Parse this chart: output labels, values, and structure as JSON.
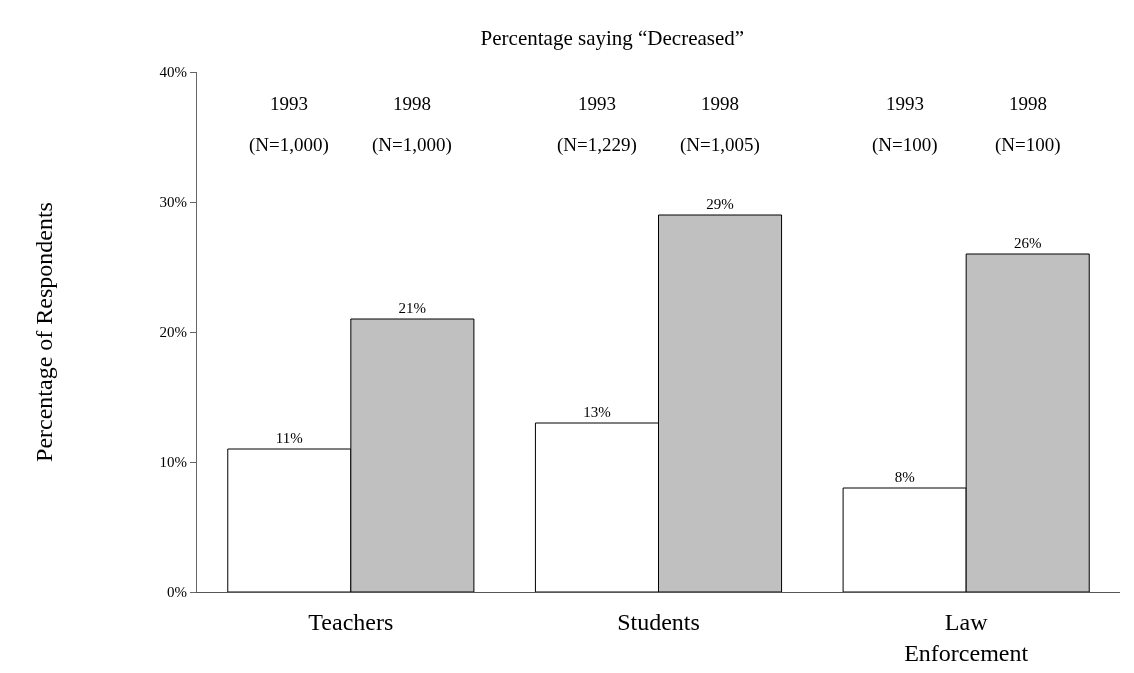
{
  "chart_data": {
    "type": "bar",
    "title": "Percentage saying “Decreased”",
    "ylabel": "Percentage of Respondents",
    "categories": [
      "Teachers",
      "Students",
      "Law\nEnforcement"
    ],
    "series": [
      {
        "color": "#ffffff",
        "values": [
          11,
          13,
          8
        ],
        "value_labels": [
          "11%",
          "13%",
          "8%"
        ]
      },
      {
        "color": "#c0c0c0",
        "values": [
          21,
          29,
          26
        ],
        "value_labels": [
          "21%",
          "29%",
          "26%"
        ]
      }
    ],
    "ylim": [
      0,
      40
    ],
    "yticks": [
      {
        "value": 0,
        "label": "0%"
      },
      {
        "value": 10,
        "label": "10%"
      },
      {
        "value": 20,
        "label": "20%"
      },
      {
        "value": 30,
        "label": "30%"
      },
      {
        "value": 40,
        "label": "40%"
      }
    ],
    "annotations": [
      "1993",
      "1998",
      "(N=1,000)",
      "(N=1,000)",
      "1993",
      "1998",
      "(N=1,229)",
      "(N=1,005)",
      "1993",
      "1998",
      "(N=100)",
      "(N=100)"
    ]
  }
}
